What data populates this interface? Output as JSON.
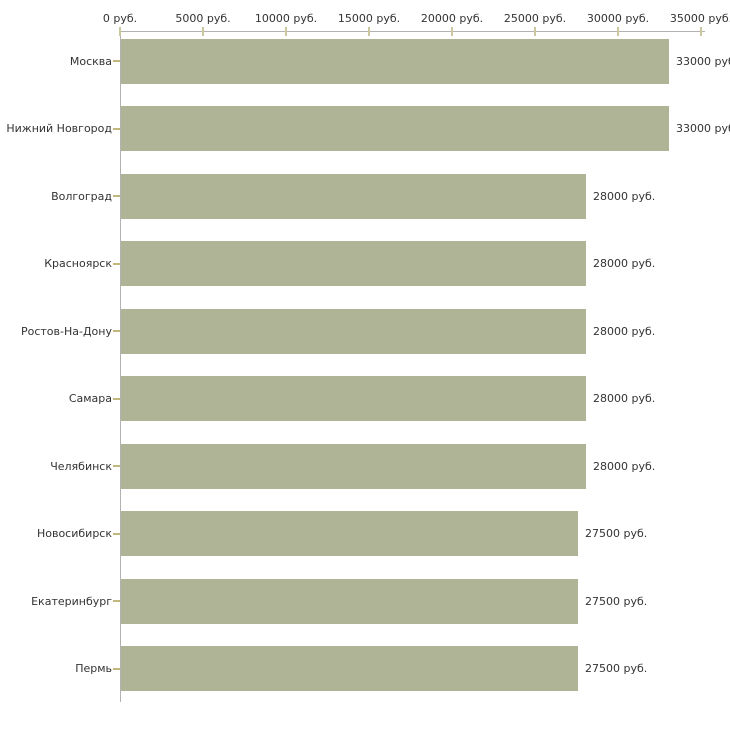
{
  "chart_data": {
    "type": "bar",
    "orientation": "horizontal",
    "title": "",
    "xlabel": "",
    "ylabel": "",
    "categories": [
      "Москва",
      "Нижний Новгород",
      "Волгоград",
      "Красноярск",
      "Ростов-На-Дону",
      "Самара",
      "Челябинск",
      "Новосибирск",
      "Екатеринбург",
      "Пермь"
    ],
    "values": [
      33000,
      33000,
      28000,
      28000,
      28000,
      28000,
      28000,
      27500,
      27500,
      27500
    ],
    "value_labels": [
      "33000 руб",
      "33000 руб",
      "28000 руб.",
      "28000 руб.",
      "28000 руб.",
      "28000 руб.",
      "28000 руб.",
      "27500 руб.",
      "27500 руб.",
      "27500 руб."
    ],
    "x_tick_labels": [
      "0 руб.",
      "5000 руб.",
      "10000 руб.",
      "15000 руб.",
      "20000 руб.",
      "25000 руб.",
      "30000 руб.",
      "35000 руб."
    ],
    "x_tick_values": [
      0,
      5000,
      10000,
      15000,
      20000,
      25000,
      30000,
      35000
    ],
    "xlim": [
      0,
      35000
    ],
    "grid": false,
    "legend": null,
    "colors": {
      "bar": "#aeb495",
      "axis": "#b2b2b2",
      "x_tick": "#cbc79e",
      "category_tick": "#c2b87e",
      "text": "#333333",
      "background": "#ffffff"
    }
  }
}
